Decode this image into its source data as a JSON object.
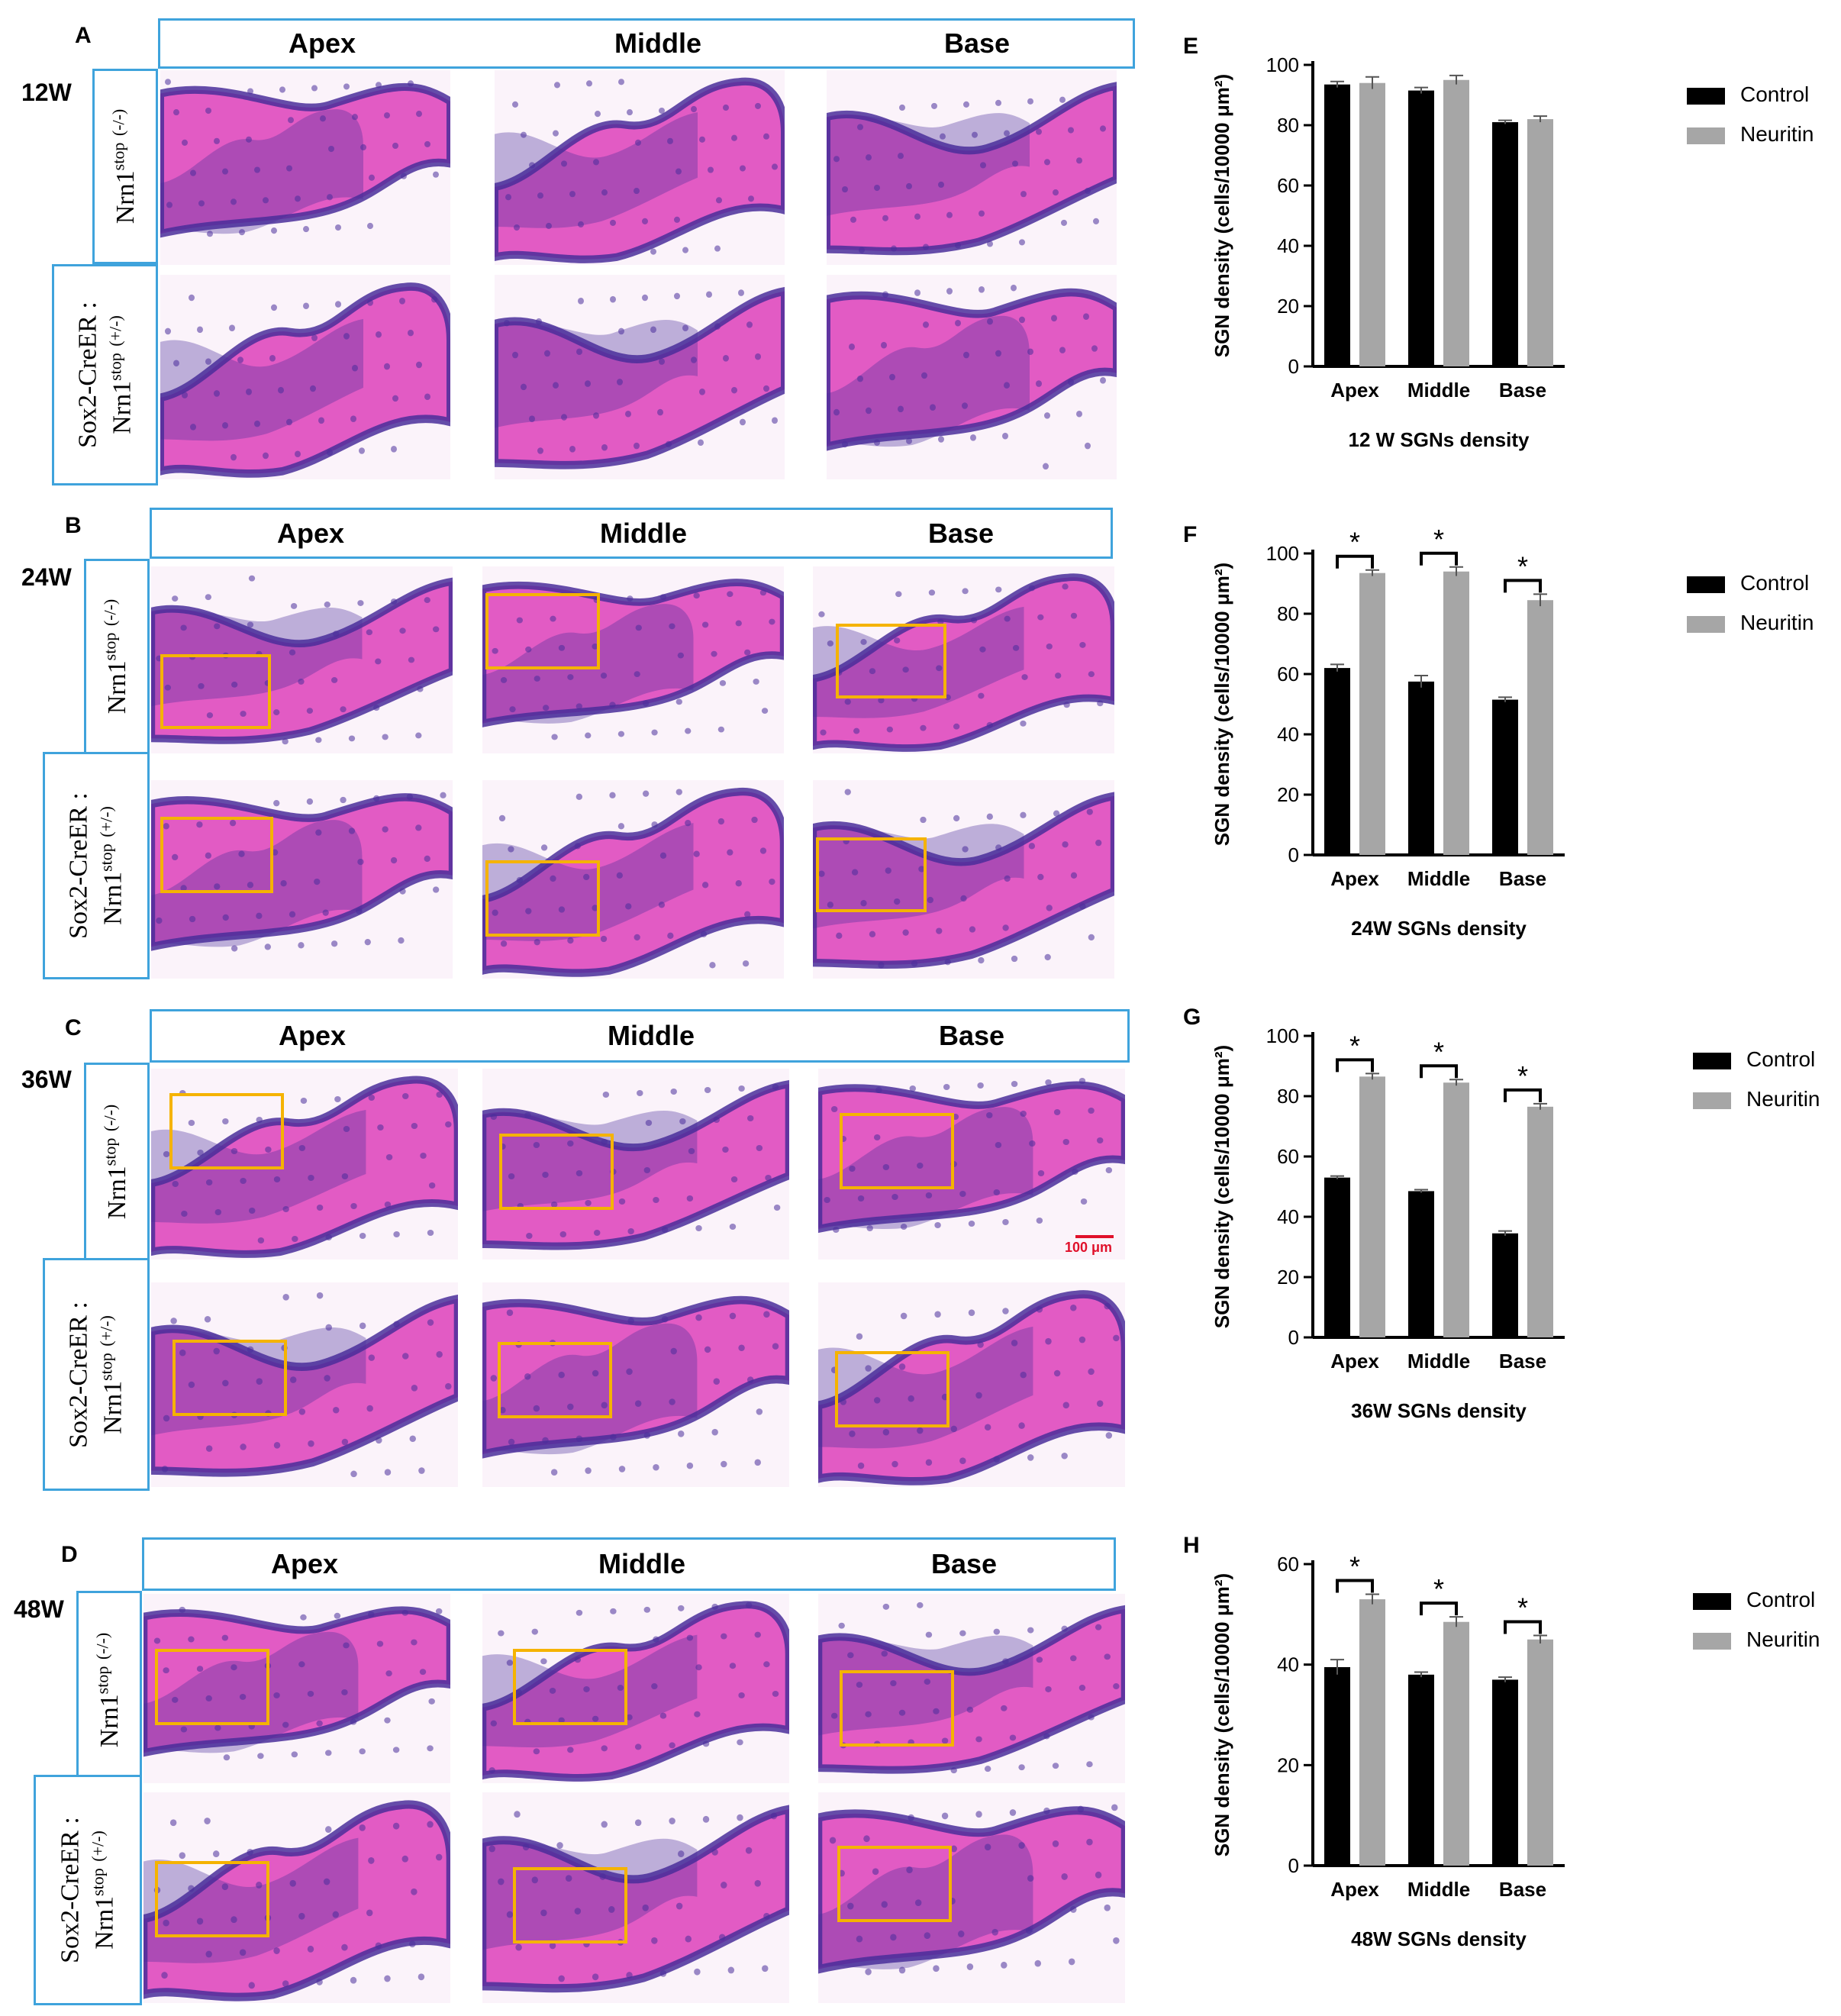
{
  "column_headers": [
    "Apex",
    "Middle",
    "Base"
  ],
  "row_labels": {
    "top": {
      "gene": "Nrn1",
      "sup": "stop",
      "genotype": "(-/-)"
    },
    "bottom": {
      "line1": "Sox2-CreER :",
      "gene": "Nrn1",
      "sup": "stop",
      "genotype": "(+/-)"
    }
  },
  "panels": [
    {
      "letter": "A",
      "week": "12W"
    },
    {
      "letter": "B",
      "week": "24W"
    },
    {
      "letter": "C",
      "week": "36W"
    },
    {
      "letter": "D",
      "week": "48W"
    }
  ],
  "scale_bar_label": "100 μm",
  "colors": {
    "control": "#000000",
    "neuritin": "#a6a6a6",
    "header_border": "#3fa3dc",
    "roi_box": "#f5b300",
    "tissue_pink": "#e25bc4",
    "tissue_purple": "#4a2e9a"
  },
  "legend": [
    "Control",
    "Neuritin"
  ],
  "chart_data": [
    {
      "letter": "E",
      "type": "bar",
      "title": "12 W SGNs density",
      "ylabel": "SGN density (cells/10000 μm²)",
      "categories": [
        "Apex",
        "Middle",
        "Base"
      ],
      "ylim": [
        0,
        100
      ],
      "yticks": [
        0,
        20,
        40,
        60,
        80,
        100
      ],
      "series": [
        {
          "name": "Control",
          "values": [
            93.5,
            91.5,
            81.0
          ],
          "errors": [
            1.0,
            1.0,
            0.6
          ]
        },
        {
          "name": "Neuritin",
          "values": [
            94.0,
            95.0,
            82.0
          ],
          "errors": [
            2.0,
            1.5,
            1.0
          ]
        }
      ],
      "significance": [
        false,
        false,
        false
      ]
    },
    {
      "letter": "F",
      "type": "bar",
      "title": "24W SGNs density",
      "ylabel": "SGN density (cells/10000 μm²)",
      "categories": [
        "Apex",
        "Middle",
        "Base"
      ],
      "ylim": [
        0,
        100
      ],
      "yticks": [
        0,
        20,
        40,
        60,
        80,
        100
      ],
      "series": [
        {
          "name": "Control",
          "values": [
            62.0,
            57.5,
            51.5
          ],
          "errors": [
            1.2,
            2.0,
            0.8
          ]
        },
        {
          "name": "Neuritin",
          "values": [
            93.5,
            94.0,
            84.5
          ],
          "errors": [
            1.0,
            1.5,
            2.0
          ]
        }
      ],
      "significance": [
        true,
        true,
        true
      ],
      "sig_label": "*"
    },
    {
      "letter": "G",
      "type": "bar",
      "title": "36W SGNs density",
      "ylabel": "SGN density (cells/10000 μm²)",
      "categories": [
        "Apex",
        "Middle",
        "Base"
      ],
      "ylim": [
        0,
        100
      ],
      "yticks": [
        0,
        20,
        40,
        60,
        80,
        100
      ],
      "series": [
        {
          "name": "Control",
          "values": [
            53.0,
            48.5,
            34.5
          ],
          "errors": [
            0.5,
            0.5,
            0.8
          ]
        },
        {
          "name": "Neuritin",
          "values": [
            86.5,
            84.5,
            76.5
          ],
          "errors": [
            1.0,
            1.0,
            1.0
          ]
        }
      ],
      "significance": [
        true,
        true,
        true
      ],
      "sig_label": "*"
    },
    {
      "letter": "H",
      "type": "bar",
      "title": "48W SGNs density",
      "ylabel": "SGN density (cells/10000 μm²)",
      "categories": [
        "Apex",
        "Middle",
        "Base"
      ],
      "ylim": [
        0,
        60
      ],
      "yticks": [
        0,
        20,
        40,
        60
      ],
      "series": [
        {
          "name": "Control",
          "values": [
            39.5,
            38.0,
            37.0
          ],
          "errors": [
            1.5,
            0.5,
            0.5
          ]
        },
        {
          "name": "Neuritin",
          "values": [
            53.0,
            48.5,
            45.0
          ],
          "errors": [
            1.0,
            1.0,
            0.8
          ]
        }
      ],
      "significance": [
        true,
        true,
        true
      ],
      "sig_label": "*"
    }
  ]
}
